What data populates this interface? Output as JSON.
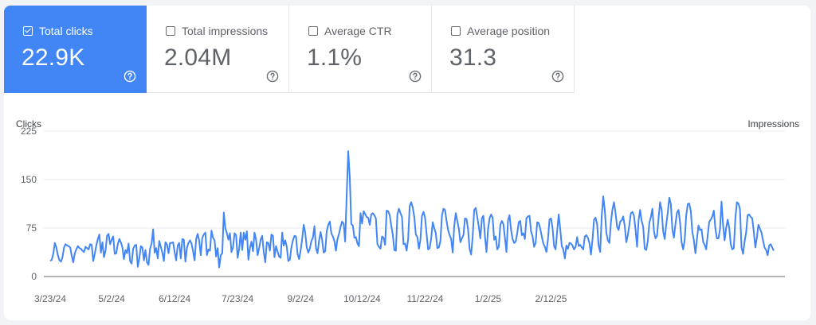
{
  "metrics": [
    {
      "label": "Total clicks",
      "value": "22.9K",
      "selected": true,
      "icon": "help-icon"
    },
    {
      "label": "Total impressions",
      "value": "2.04M",
      "selected": false,
      "icon": "help-icon"
    },
    {
      "label": "Average CTR",
      "value": "1.1%",
      "selected": false,
      "icon": "help-icon"
    },
    {
      "label": "Average position",
      "value": "31.3",
      "selected": false,
      "icon": "help-icon"
    }
  ],
  "colors": {
    "accent": "#4285f4",
    "line": "#4285f4",
    "grid": "#e8eaed"
  },
  "chart_data": {
    "type": "line",
    "y_left_label": "Clicks",
    "y_right_label": "Impressions",
    "y_ticks": [
      0,
      75,
      150,
      225
    ],
    "ylim": [
      0,
      225
    ],
    "x_tick_labels": [
      "3/23/24",
      "5/2/24",
      "6/12/24",
      "7/23/24",
      "9/2/24",
      "10/12/24",
      "11/22/24",
      "1/2/25",
      "2/12/25"
    ],
    "x_tick_dates": [
      "2024-03-23",
      "2024-05-02",
      "2024-06-12",
      "2024-07-23",
      "2024-09-02",
      "2024-10-12",
      "2024-11-22",
      "2025-01-02",
      "2025-02-12"
    ],
    "grid": true,
    "series": [
      {
        "start_date": "2024-03-23",
        "values": [
          24,
          26,
          35,
          52,
          45,
          33,
          25,
          23,
          30,
          45,
          50,
          48,
          47,
          45,
          32,
          22,
          36,
          42,
          47,
          44,
          43,
          40,
          38,
          46,
          44,
          42,
          50,
          49,
          24,
          35,
          48,
          58,
          65,
          37,
          53,
          30,
          40,
          63,
          66,
          50,
          57,
          62,
          35,
          36,
          50,
          58,
          53,
          45,
          27,
          41,
          36,
          51,
          24,
          20,
          43,
          48,
          49,
          15,
          28,
          47,
          45,
          25,
          41,
          22,
          18,
          43,
          51,
          73,
          37,
          44,
          28,
          55,
          46,
          37,
          24,
          53,
          50,
          36,
          52,
          52,
          53,
          38,
          25,
          48,
          52,
          28,
          58,
          57,
          23,
          44,
          52,
          56,
          51,
          39,
          25,
          58,
          66,
          55,
          33,
          60,
          65,
          68,
          33,
          42,
          40,
          71,
          60,
          56,
          31,
          44,
          14,
          33,
          36,
          99,
          75,
          67,
          57,
          67,
          38,
          45,
          67,
          64,
          29,
          43,
          68,
          41,
          68,
          57,
          70,
          26,
          44,
          54,
          39,
          68,
          57,
          33,
          44,
          57,
          63,
          38,
          22,
          53,
          52,
          40,
          65,
          63,
          30,
          47,
          39,
          31,
          29,
          68,
          48,
          56,
          46,
          24,
          26,
          45,
          56,
          63,
          62,
          35,
          27,
          40,
          58,
          80,
          68,
          45,
          37,
          43,
          55,
          60,
          78,
          44,
          36,
          55,
          69,
          57,
          37,
          39,
          70,
          80,
          85,
          67,
          62,
          55,
          40,
          58,
          66,
          77,
          85,
          82,
          54,
          126,
          194,
          154,
          81,
          79,
          60,
          61,
          51,
          47,
          98,
          82,
          101,
          97,
          92,
          91,
          80,
          96,
          98,
          95,
          90,
          50,
          46,
          43,
          62,
          60,
          49,
          102,
          101,
          95,
          79,
          65,
          41,
          40,
          96,
          105,
          98,
          92,
          50,
          51,
          40,
          58,
          109,
          115,
          107,
          92,
          65,
          61,
          43,
          57,
          94,
          100,
          91,
          66,
          42,
          44,
          59,
          84,
          75,
          67,
          44,
          45,
          55,
          94,
          105,
          103,
          86,
          72,
          64,
          58,
          37,
          78,
          98,
          86,
          74,
          53,
          59,
          64,
          90,
          89,
          73,
          43,
          34,
          62,
          103,
          106,
          92,
          77,
          59,
          90,
          94,
          62,
          38,
          73,
          90,
          96,
          91,
          57,
          62,
          42,
          46,
          80,
          86,
          81,
          60,
          38,
          87,
          95,
          72,
          58,
          52,
          54,
          67,
          84,
          86,
          64,
          67,
          58,
          90,
          93,
          94,
          70,
          62,
          46,
          52,
          84,
          83,
          74,
          62,
          51,
          46,
          38,
          57,
          88,
          90,
          75,
          47,
          42,
          70,
          96,
          74,
          47,
          42,
          28,
          48,
          43,
          52,
          51,
          48,
          42,
          46,
          61,
          47,
          49,
          45,
          42,
          62,
          64,
          60,
          52,
          34,
          57,
          88,
          91,
          81,
          48,
          38,
          93,
          124,
          103,
          68,
          56,
          52,
          84,
          104,
          115,
          98,
          77,
          72,
          85,
          87,
          93,
          78,
          53,
          64,
          80,
          98,
          100,
          94,
          73,
          46,
          87,
          103,
          86,
          77,
          43,
          41,
          55,
          83,
          92,
          105,
          70,
          59,
          63,
          90,
          115,
          103,
          70,
          58,
          80,
          99,
          122,
          112,
          73,
          60,
          81,
          99,
          103,
          84,
          53,
          42,
          56,
          94,
          112,
          113,
          101,
          69,
          56,
          36,
          58,
          79,
          72,
          73,
          54,
          49,
          42,
          64,
          85,
          88,
          93,
          102,
          74,
          59,
          59,
          73,
          116,
          80,
          56,
          75,
          88,
          76,
          50,
          42,
          44,
          90,
          115,
          113,
          104,
          45,
          35,
          54,
          68,
          95,
          96,
          92,
          90,
          69,
          45,
          60,
          80,
          74,
          68,
          56,
          45,
          41,
          33,
          48,
          50,
          45,
          40
        ]
      }
    ]
  }
}
